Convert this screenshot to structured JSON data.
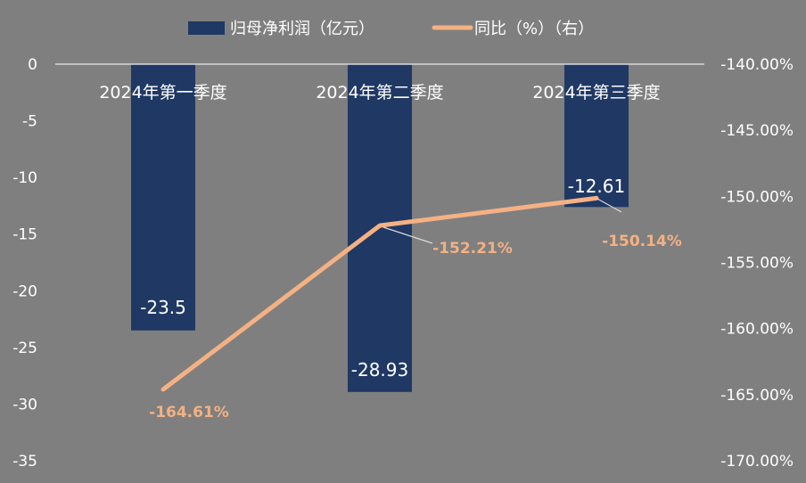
{
  "chart_data": {
    "type": "bar",
    "title": "",
    "categories": [
      "2024年第一季度",
      "2024年第二季度",
      "2024年第三季度"
    ],
    "series": [
      {
        "name": "归母净利润（亿元）",
        "type": "bar",
        "axis": "left",
        "values": [
          -23.5,
          -28.93,
          -12.61
        ],
        "labels": [
          "-23.5",
          "-28.93",
          "-12.61"
        ]
      },
      {
        "name": "同比（%）（右）",
        "type": "line",
        "axis": "right",
        "values": [
          -164.61,
          -152.21,
          -150.14
        ],
        "labels": [
          "-164.61%",
          "-152.21%",
          "-150.14%"
        ]
      }
    ],
    "left_axis": {
      "ylim": [
        -35,
        0
      ],
      "ticks": [
        0,
        -5,
        -10,
        -15,
        -20,
        -25,
        -30,
        -35
      ],
      "tick_labels": [
        "0",
        "-5",
        "-10",
        "-15",
        "-20",
        "-25",
        "-30",
        "-35"
      ]
    },
    "right_axis": {
      "ylim": [
        -170,
        -140
      ],
      "ticks": [
        -140,
        -145,
        -150,
        -155,
        -160,
        -165,
        -170
      ],
      "tick_labels": [
        "-140.00%",
        "-145.00%",
        "-150.00%",
        "-155.00%",
        "-160.00%",
        "-165.00%",
        "-170.00%"
      ]
    },
    "legend": "top",
    "grid": false,
    "colors": {
      "background": "#7f7f7f",
      "bar": "#1f3864",
      "line": "#f4b183",
      "line_label": "#f4b183",
      "bar_label": "#ffffff",
      "text": "#ffffff",
      "axis_line": "#d9d9d9",
      "leader": "#d9d9d9"
    }
  }
}
